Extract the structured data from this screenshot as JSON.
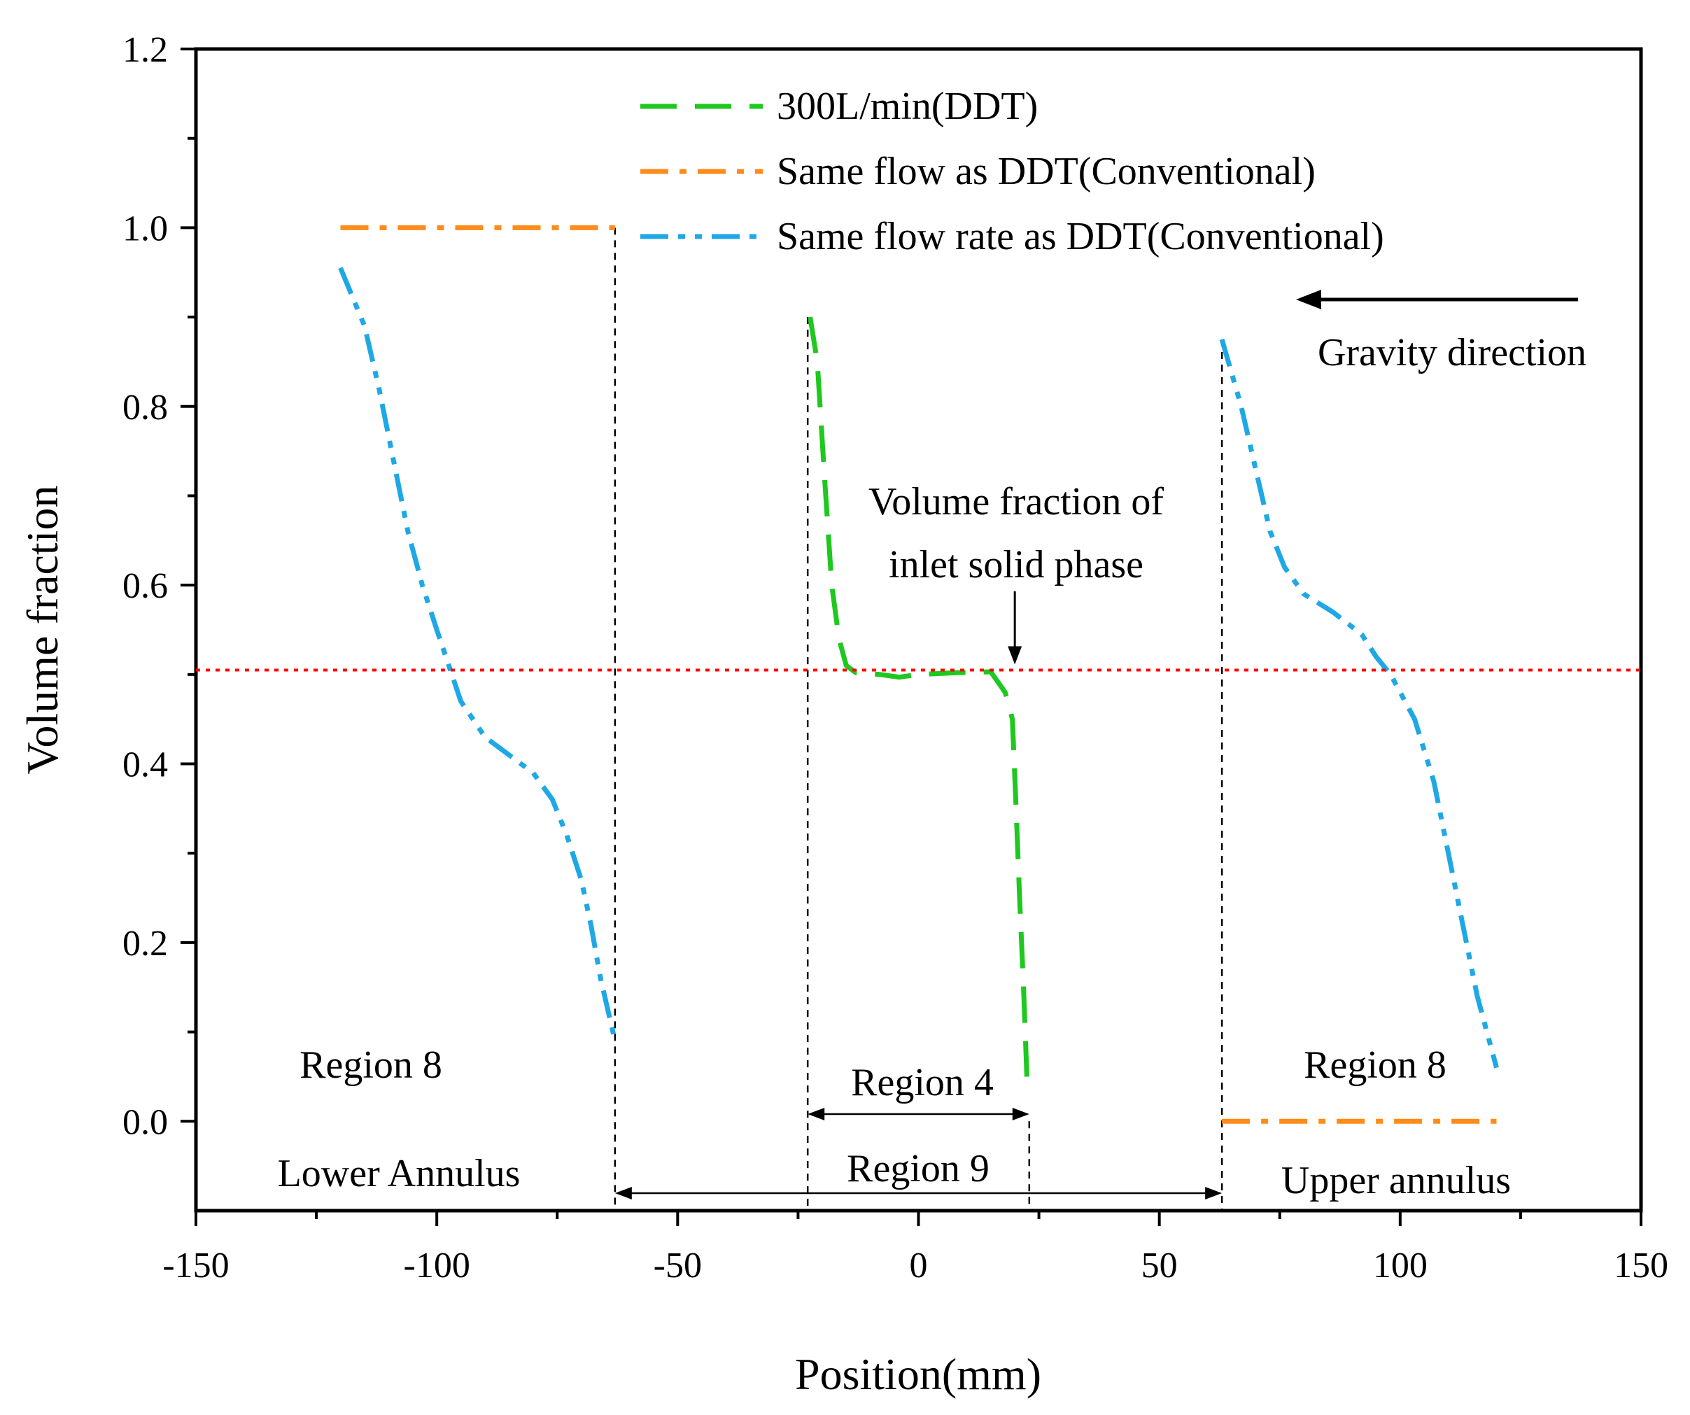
{
  "chart_data": {
    "type": "line",
    "title": "",
    "xlabel": "Position(mm)",
    "ylabel": "Volume fraction",
    "xlim": [
      -150,
      150
    ],
    "ylim": [
      -0.1,
      1.2
    ],
    "x_ticks": [
      -150,
      -100,
      -50,
      0,
      50,
      100,
      150
    ],
    "x_tick_labels": [
      "-150",
      "-100",
      "-50",
      "0",
      "50",
      "100",
      "150"
    ],
    "y_ticks": [
      0.0,
      0.2,
      0.4,
      0.6,
      0.8,
      1.0,
      1.2
    ],
    "y_tick_labels": [
      "0.0",
      "0.2",
      "0.4",
      "0.6",
      "0.8",
      "1.0",
      "1.2"
    ],
    "grid": false,
    "legend_position": "top-right",
    "series": [
      {
        "name": "300L/min(DDT)",
        "color": "#1ec81e",
        "style": "dash",
        "points": [
          [
            -22.5,
            0.9
          ],
          [
            -21,
            0.85
          ],
          [
            -19.5,
            0.72
          ],
          [
            -18,
            0.6
          ],
          [
            -16.5,
            0.54
          ],
          [
            -15,
            0.51
          ],
          [
            -13,
            0.502
          ],
          [
            -8,
            0.5
          ],
          [
            -4,
            0.497
          ],
          [
            0,
            0.5
          ],
          [
            8,
            0.502
          ],
          [
            15,
            0.503
          ],
          [
            18,
            0.48
          ],
          [
            19.5,
            0.45
          ],
          [
            20.2,
            0.36
          ],
          [
            21,
            0.25
          ],
          [
            21.8,
            0.15
          ],
          [
            22.5,
            0.05
          ]
        ]
      },
      {
        "name": "Same flow as DDT(Conventional)",
        "color": "#ff8c1a",
        "style": "dash-dot",
        "segments": [
          [
            [
              -120,
              1.0
            ],
            [
              -63,
              1.0
            ]
          ],
          [
            [
              63,
              0.0
            ],
            [
              120,
              0.0
            ]
          ]
        ]
      },
      {
        "name": "Same flow rate as DDT(Conventional)",
        "color": "#1ea8e6",
        "style": "dash-dot-dot",
        "segments": [
          [
            [
              -120,
              0.955
            ],
            [
              -115,
              0.89
            ],
            [
              -112,
              0.82
            ],
            [
              -109,
              0.74
            ],
            [
              -106,
              0.66
            ],
            [
              -103,
              0.6
            ],
            [
              -100,
              0.55
            ],
            [
              -95,
              0.47
            ],
            [
              -90,
              0.43
            ],
            [
              -85,
              0.41
            ],
            [
              -80,
              0.39
            ],
            [
              -76,
              0.36
            ],
            [
              -73,
              0.32
            ],
            [
              -70,
              0.27
            ],
            [
              -68,
              0.22
            ],
            [
              -66,
              0.16
            ],
            [
              -63,
              0.09
            ]
          ],
          [
            [
              63,
              0.875
            ],
            [
              67,
              0.8
            ],
            [
              70,
              0.73
            ],
            [
              73,
              0.66
            ],
            [
              76,
              0.62
            ],
            [
              80,
              0.59
            ],
            [
              86,
              0.57
            ],
            [
              92,
              0.545
            ],
            [
              95,
              0.52
            ],
            [
              98,
              0.5
            ],
            [
              103,
              0.45
            ],
            [
              107,
              0.38
            ],
            [
              110,
              0.3
            ],
            [
              113,
              0.22
            ],
            [
              116,
              0.14
            ],
            [
              120,
              0.06
            ]
          ]
        ]
      },
      {
        "name": "Volume fraction of inlet solid phase",
        "color": "#ff0000",
        "style": "dotted",
        "y_constant": 0.505
      }
    ],
    "boundary_lines_x": [
      -63,
      -23,
      23,
      63
    ],
    "annotations": {
      "gravity": "Gravity direction",
      "inlet_line1": "Volume fraction of",
      "inlet_line2": "inlet solid phase",
      "region8_left": "Region 8",
      "lower_annulus": "Lower Annulus",
      "region4": "Region 4",
      "region9": "Region 9",
      "region8_right": "Region 8",
      "upper_annulus": "Upper annulus"
    }
  }
}
